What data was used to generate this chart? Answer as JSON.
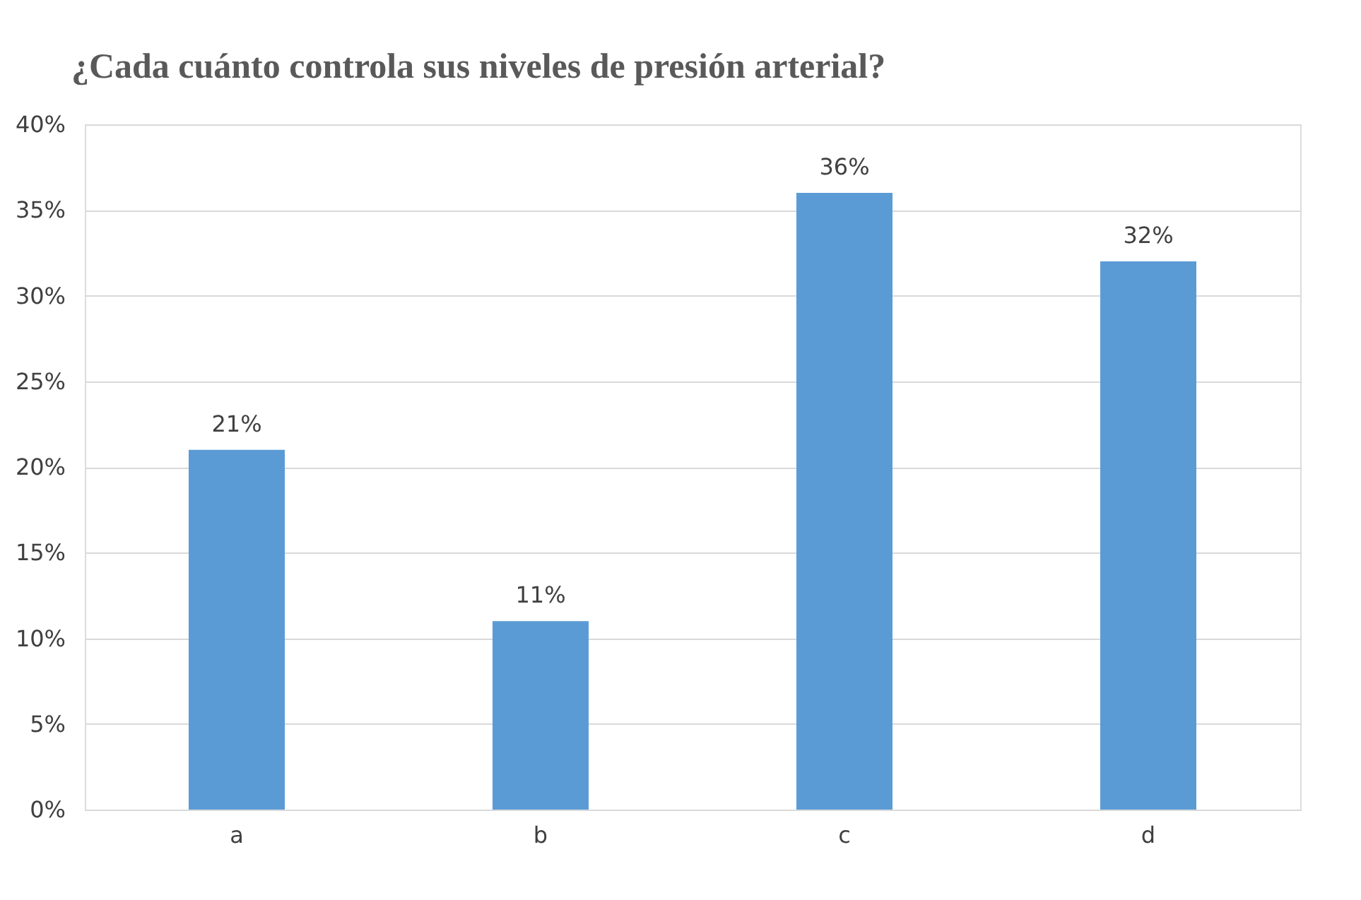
{
  "chart_data": {
    "type": "bar",
    "title": "¿Cada cuánto controla sus niveles de presión arterial?",
    "categories": [
      "a",
      "b",
      "c",
      "d"
    ],
    "values": [
      21,
      11,
      36,
      32
    ],
    "value_labels": [
      "21%",
      "11%",
      "36%",
      "32%"
    ],
    "color": "#5b9bd5",
    "ylim": [
      0,
      40
    ],
    "yticks": [
      {
        "value": 0,
        "label": "0%"
      },
      {
        "value": 5,
        "label": "5%"
      },
      {
        "value": 10,
        "label": "10%"
      },
      {
        "value": 15,
        "label": "15%"
      },
      {
        "value": 20,
        "label": "20%"
      },
      {
        "value": 25,
        "label": "25%"
      },
      {
        "value": 30,
        "label": "30%"
      },
      {
        "value": 35,
        "label": "35%"
      },
      {
        "value": 40,
        "label": "40%"
      }
    ],
    "grid": "y"
  }
}
